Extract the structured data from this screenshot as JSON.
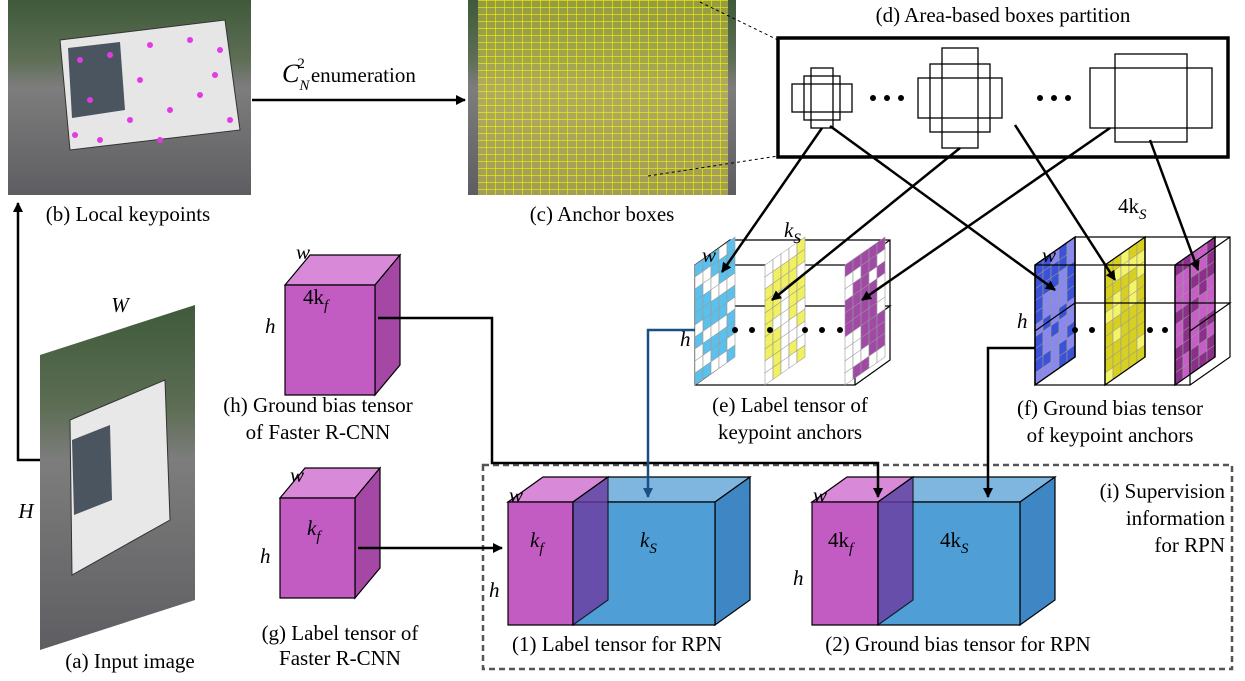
{
  "enumeration_label": {
    "symbol": "C",
    "sub": "N",
    "sup": "2",
    "text": "enumeration"
  },
  "panels": {
    "a": {
      "caption": "(a) Input image",
      "width_label": "W",
      "height_label": "H"
    },
    "b": {
      "caption": "(b) Local keypoints"
    },
    "c": {
      "caption": "(c) Anchor boxes"
    },
    "d": {
      "caption": "(d) Area-based boxes partition"
    },
    "e": {
      "caption": [
        "(e)  Label tensor of",
        "keypoint anchors"
      ],
      "w": "w",
      "h": "h",
      "depth": {
        "main": "k",
        "sub": "S"
      }
    },
    "f": {
      "caption": [
        "(f) Ground bias tensor",
        "of keypoint anchors"
      ],
      "w": "w",
      "h": "h",
      "depth": {
        "main": "4k",
        "sub": "S"
      }
    },
    "g": {
      "caption": [
        "(g) Label tensor  of",
        "Faster R-CNN"
      ],
      "w": "w",
      "h": "h",
      "depth": {
        "main": "k",
        "sub": "f"
      }
    },
    "h": {
      "caption": [
        "(h) Ground bias tensor",
        "of Faster R-CNN"
      ],
      "w": "w",
      "h": "h",
      "depth": {
        "main": "4k",
        "sub": "f"
      }
    },
    "i": {
      "caption": [
        "(i) Supervision",
        "information",
        "for RPN"
      ]
    },
    "rpn1": {
      "caption": "(1) Label tensor for RPN",
      "w": "w",
      "h": "h",
      "left": {
        "main": "k",
        "sub": "f"
      },
      "right": {
        "main": "k",
        "sub": "S"
      }
    },
    "rpn2": {
      "caption": "(2) Ground bias tensor for RPN",
      "w": "w",
      "h": "h",
      "left": {
        "main": "4k",
        "sub": "f"
      },
      "right": {
        "main": "4k",
        "sub": "S"
      }
    }
  }
}
